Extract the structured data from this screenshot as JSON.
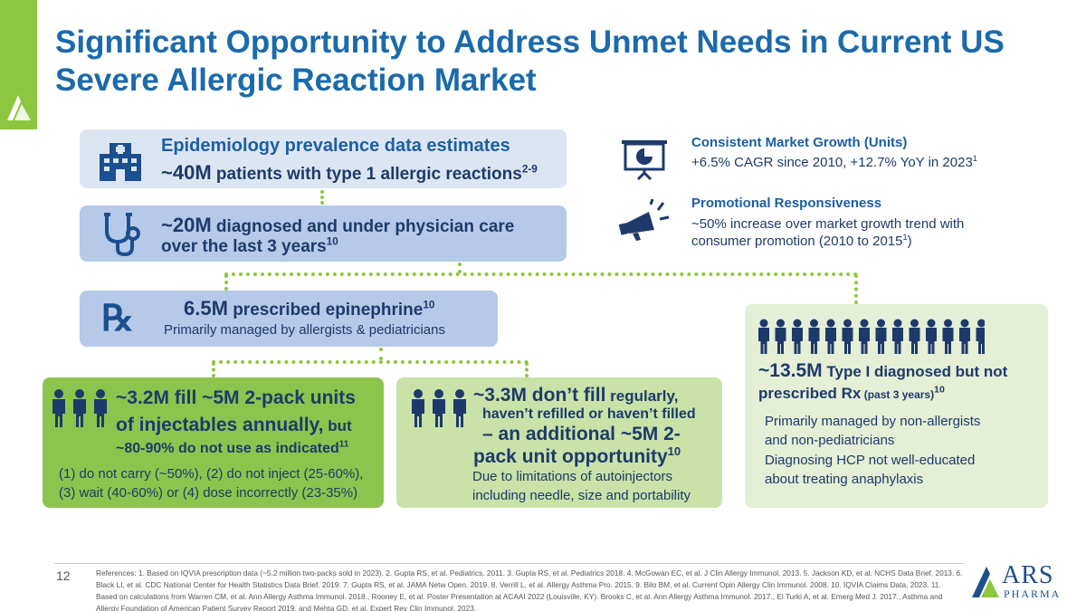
{
  "title": {
    "line1": "Significant Opportunity to Address Unmet Needs in Current US",
    "line2": "Severe Allergic Reaction Market"
  },
  "box1": {
    "heading": "Epidemiology prevalence data estimates",
    "value": "~40M",
    "text": " patients with type 1 allergic reactions",
    "sup": "2-9"
  },
  "box2": {
    "value": "~20M",
    "text": " diagnosed and under physician care",
    "line2": "over the last 3 years",
    "sup": "10"
  },
  "box3": {
    "value": "6.5M",
    "text": " prescribed epinephrine",
    "sup": "10",
    "sub": "Primarily managed by allergists & pediatricians"
  },
  "box4": {
    "line1": "~3.2M fill ~5M 2-pack units",
    "line2a": "of injectables annually,",
    "line2b": " but",
    "line3": "~80-90% do not use as indicated",
    "line3_sup": "11",
    "line4": "(1) do not carry (~50%), (2) do not inject (25-60%),",
    "line5": "(3) wait (40-60%) or (4) dose incorrectly (23-35%)"
  },
  "box5": {
    "line1a": "~3.3M don’t fill",
    "line1b": " regularly,",
    "line2": "haven’t refilled or haven’t filled",
    "line3": "– an additional ~5M 2-",
    "line4": "pack unit opportunity",
    "line4_sup": "10",
    "line5": "Due to limitations of autoinjectors",
    "line6": "including needle, size and portability"
  },
  "box6": {
    "line1a": "~13.5M",
    "line1b": " Type I diagnosed but not",
    "line2a": "prescribed Rx",
    "line2b": " (past 3 years)",
    "line2_sup": "10",
    "line3": "Primarily managed by non-allergists",
    "line4": "and non-pediatricians",
    "line5": "Diagnosing HCP not well-educated",
    "line6": "about treating anaphylaxis"
  },
  "growth": {
    "heading": "Consistent Market Growth (Units)",
    "text": "+6.5% CAGR since 2010, +12.7% YoY in 2023",
    "sup": "1"
  },
  "promo": {
    "heading": "Promotional Responsiveness",
    "line1": "~50% increase over market growth trend with",
    "line2a": "consumer promotion (2010 to 2015",
    "line2_sup": "1",
    "line2b": ")"
  },
  "footer": {
    "page": "12",
    "refs": "References: 1. Based on IQVIA prescription data (~5.2 million two-packs sold in 2023). 2. Gupta RS, et al. Pediatrics. 2011. 3. Gupta RS, et al. Pediatrics 2018. 4. McGowan EC, et al. J Clin Allergy Immunol. 2013. 5. Jackson KD, et al. NCHS Data Brief. 2013. 6. Black LI, et al. CDC National Center for Health Statistics Data Brief. 2019. 7. Gupta RS, et al. JAMA Netw Open. 2019. 8. Verrill L, et al. Allergy Asthma Pro. 2015. 9. Bilo BM, et al. Current Opin Allergy Clin Immunol. 2008. 10. IQVIA Claims Data, 2023. 11. Based on calculations from Warren CM, et al. Ann Allergy Asthma Immunol. 2018., Rooney E, et al. Poster Presentation at ACAAI 2022 (Louisville, KY). Brooks C, et al. Ann Allergy Asthma Immunol. 2017., El Turki A, et al. Emerg Med J. 2017., Asthma and Allergy Foundation of American Patient Survey Report 2019, and Mehta GD, et al. Expert Rev Clin Immunol. 2023."
  },
  "brand": {
    "name": "ARS",
    "sub": "PHARMA"
  },
  "colors": {
    "accent_green": "#8dc63f",
    "title_blue": "#1b6aab",
    "text_navy": "#1e3a6a"
  },
  "icons": [
    "hospital-icon",
    "stethoscope-icon",
    "rx-icon",
    "chart-presentation-icon",
    "megaphone-icon",
    "person-icon"
  ]
}
